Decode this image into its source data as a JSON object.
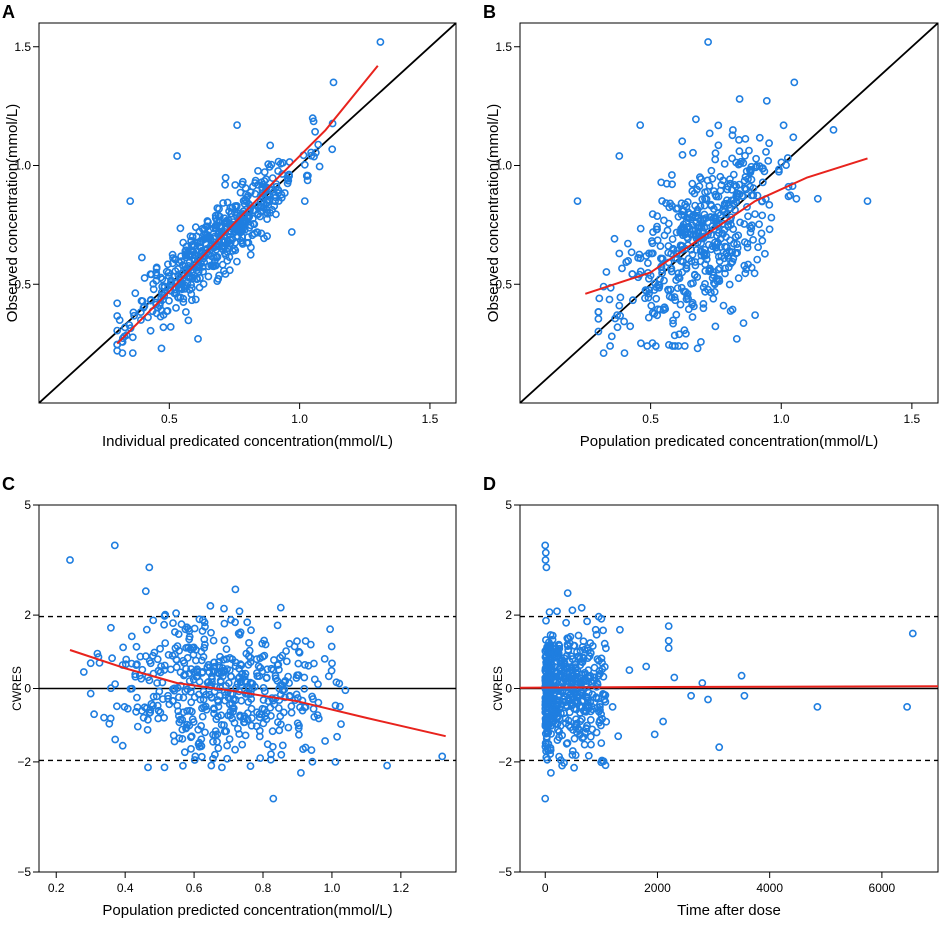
{
  "chart_data": [
    {
      "panel": "A",
      "type": "scatter",
      "xlabel": "Individual predicated concentration(mmol/L)",
      "ylabel": "Observed concentration(mmol/L)",
      "xlim": [
        0.0,
        1.6
      ],
      "ylim": [
        0.0,
        1.6
      ],
      "x_ticks": [
        {
          "v": 0.5,
          "label": "0.5"
        },
        {
          "v": 1.0,
          "label": "1.0"
        },
        {
          "v": 1.5,
          "label": "1.5"
        }
      ],
      "y_ticks": [
        {
          "v": 0.5,
          "label": "0.5"
        },
        {
          "v": 1.0,
          "label": "1.0"
        },
        {
          "v": 1.5,
          "label": "1.5"
        }
      ],
      "reference_line": {
        "type": "identity",
        "color": "#000000"
      },
      "smooth_line": {
        "color": "#e8231d",
        "points": [
          [
            0.3,
            0.25
          ],
          [
            0.5,
            0.47
          ],
          [
            0.7,
            0.7
          ],
          [
            0.9,
            0.93
          ],
          [
            1.1,
            1.15
          ],
          [
            1.3,
            1.42
          ]
        ]
      },
      "point_color": "#1f7ee0",
      "generator": {
        "mode": "ipred",
        "n": 520,
        "seed": 11,
        "xmin": 0.3,
        "xmax": 1.3,
        "center": 0.68,
        "spread": 0.16,
        "noise": 0.075
      },
      "points": [
        [
          1.31,
          1.52
        ],
        [
          0.35,
          0.85
        ],
        [
          0.53,
          1.04
        ],
        [
          0.3,
          0.42
        ],
        [
          0.32,
          0.21
        ],
        [
          0.36,
          0.21
        ],
        [
          0.47,
          0.23
        ],
        [
          0.61,
          0.27
        ],
        [
          1.02,
          0.85
        ],
        [
          0.76,
          1.17
        ],
        [
          1.13,
          1.35
        ],
        [
          0.97,
          0.72
        ]
      ]
    },
    {
      "panel": "B",
      "type": "scatter",
      "xlabel": "Population predicated concentration(mmol/L)",
      "ylabel": "Observed concentration(mmol/L)",
      "xlim": [
        0.0,
        1.6
      ],
      "ylim": [
        0.0,
        1.6
      ],
      "x_ticks": [
        {
          "v": 0.5,
          "label": "0.5"
        },
        {
          "v": 1.0,
          "label": "1.0"
        },
        {
          "v": 1.5,
          "label": "1.5"
        }
      ],
      "y_ticks": [
        {
          "v": 0.5,
          "label": "0.5"
        },
        {
          "v": 1.0,
          "label": "1.0"
        },
        {
          "v": 1.5,
          "label": "1.5"
        }
      ],
      "reference_line": {
        "type": "identity",
        "color": "#000000"
      },
      "smooth_line": {
        "color": "#e8231d",
        "points": [
          [
            0.25,
            0.46
          ],
          [
            0.5,
            0.55
          ],
          [
            0.7,
            0.7
          ],
          [
            0.9,
            0.85
          ],
          [
            1.1,
            0.95
          ],
          [
            1.33,
            1.03
          ]
        ]
      },
      "point_color": "#1f7ee0",
      "generator": {
        "mode": "pred",
        "n": 520,
        "seed": 23,
        "xmin": 0.3,
        "xmax": 1.2,
        "center": 0.68,
        "spread": 0.15,
        "noise": 0.17
      },
      "points": [
        [
          0.72,
          1.52
        ],
        [
          0.22,
          0.85
        ],
        [
          0.38,
          1.04
        ],
        [
          0.46,
          1.17
        ],
        [
          1.33,
          0.85
        ],
        [
          1.2,
          1.15
        ],
        [
          1.14,
          0.86
        ],
        [
          1.05,
          1.35
        ],
        [
          0.32,
          0.21
        ],
        [
          0.4,
          0.21
        ],
        [
          0.68,
          0.23
        ],
        [
          0.83,
          0.27
        ],
        [
          0.9,
          0.37
        ]
      ]
    },
    {
      "panel": "C",
      "type": "scatter",
      "xlabel": "Population predicted concentration(mmol/L)",
      "ylabel": "CWRES",
      "xlim": [
        0.15,
        1.36
      ],
      "ylim": [
        -5,
        5
      ],
      "x_ticks": [
        {
          "v": 0.2,
          "label": "0.2"
        },
        {
          "v": 0.4,
          "label": "0.4"
        },
        {
          "v": 0.6,
          "label": "0.6"
        },
        {
          "v": 0.8,
          "label": "0.8"
        },
        {
          "v": 1.0,
          "label": "1.0"
        },
        {
          "v": 1.2,
          "label": "1.2"
        }
      ],
      "y_ticks": [
        {
          "v": -5,
          "label": "−5"
        },
        {
          "v": -2,
          "label": "−2"
        },
        {
          "v": 0,
          "label": "0"
        },
        {
          "v": 2,
          "label": "2"
        },
        {
          "v": 5,
          "label": "5"
        }
      ],
      "hlines": [
        {
          "y": 0,
          "style": "solid"
        },
        {
          "y": 1.96,
          "style": "dashed"
        },
        {
          "y": -1.96,
          "style": "dashed"
        }
      ],
      "smooth_line": {
        "color": "#e8231d",
        "points": [
          [
            0.24,
            1.05
          ],
          [
            0.4,
            0.55
          ],
          [
            0.55,
            0.15
          ],
          [
            0.7,
            -0.05
          ],
          [
            0.9,
            -0.35
          ],
          [
            1.1,
            -0.8
          ],
          [
            1.33,
            -1.3
          ]
        ]
      },
      "point_color": "#1f7ee0",
      "generator": {
        "mode": "cwres_pred",
        "n": 520,
        "seed": 37,
        "xmin": 0.3,
        "xmax": 1.12,
        "center": 0.68,
        "spread": 0.15,
        "noise": 0.95
      },
      "points": [
        [
          0.24,
          3.5
        ],
        [
          0.37,
          3.9
        ],
        [
          0.47,
          3.3
        ],
        [
          0.46,
          2.65
        ],
        [
          0.72,
          2.7
        ],
        [
          0.83,
          -3.0
        ],
        [
          1.16,
          -2.1
        ],
        [
          1.32,
          -1.85
        ],
        [
          0.65,
          -2.1
        ],
        [
          0.91,
          -2.3
        ],
        [
          1.01,
          -2.0
        ],
        [
          0.28,
          0.45
        ],
        [
          0.31,
          -0.7
        ]
      ]
    },
    {
      "panel": "D",
      "type": "scatter",
      "xlabel": "Time after dose",
      "ylabel": "CWRES",
      "xlim": [
        -450,
        7000
      ],
      "ylim": [
        -5,
        5
      ],
      "x_ticks": [
        {
          "v": 0,
          "label": "0"
        },
        {
          "v": 2000,
          "label": "2000"
        },
        {
          "v": 4000,
          "label": "4000"
        },
        {
          "v": 6000,
          "label": "6000"
        }
      ],
      "y_ticks": [
        {
          "v": -5,
          "label": "−5"
        },
        {
          "v": -2,
          "label": "−2"
        },
        {
          "v": 0,
          "label": "0"
        },
        {
          "v": 2,
          "label": "2"
        },
        {
          "v": 5,
          "label": "5"
        }
      ],
      "hlines": [
        {
          "y": 0,
          "style": "solid"
        },
        {
          "y": 1.96,
          "style": "dashed"
        },
        {
          "y": -1.96,
          "style": "dashed"
        }
      ],
      "smooth_line": {
        "color": "#e8231d",
        "points": [
          [
            -450,
            0.02
          ],
          [
            2000,
            0.04
          ],
          [
            4000,
            0.05
          ],
          [
            7000,
            0.06
          ]
        ]
      },
      "point_color": "#1f7ee0",
      "generator": {
        "mode": "time",
        "n": 520,
        "seed": 53,
        "xmin": 0,
        "xmax": 1100,
        "center": 0,
        "spread": 0,
        "noise": 0.85
      },
      "points": [
        [
          0,
          3.9
        ],
        [
          10,
          3.7
        ],
        [
          20,
          3.3
        ],
        [
          5,
          3.5
        ],
        [
          0,
          -3.0
        ],
        [
          1300,
          -1.3
        ],
        [
          1330,
          1.6
        ],
        [
          1500,
          0.5
        ],
        [
          1800,
          0.6
        ],
        [
          1950,
          -1.25
        ],
        [
          2100,
          -0.9
        ],
        [
          2200,
          1.7
        ],
        [
          2200,
          1.3
        ],
        [
          2200,
          1.1
        ],
        [
          2300,
          0.3
        ],
        [
          2600,
          -0.2
        ],
        [
          2800,
          0.15
        ],
        [
          2900,
          -0.3
        ],
        [
          3100,
          -1.6
        ],
        [
          3500,
          0.35
        ],
        [
          3550,
          -0.2
        ],
        [
          4850,
          -0.5
        ],
        [
          6450,
          -0.5
        ],
        [
          6550,
          1.5
        ],
        [
          1200,
          -0.5
        ],
        [
          900,
          1.6
        ],
        [
          650,
          2.2
        ],
        [
          400,
          2.6
        ],
        [
          1000,
          1.9
        ],
        [
          300,
          -2.1
        ],
        [
          100,
          -2.3
        ]
      ]
    }
  ],
  "labels": {
    "A": "A",
    "B": "B",
    "C": "C",
    "D": "D"
  }
}
